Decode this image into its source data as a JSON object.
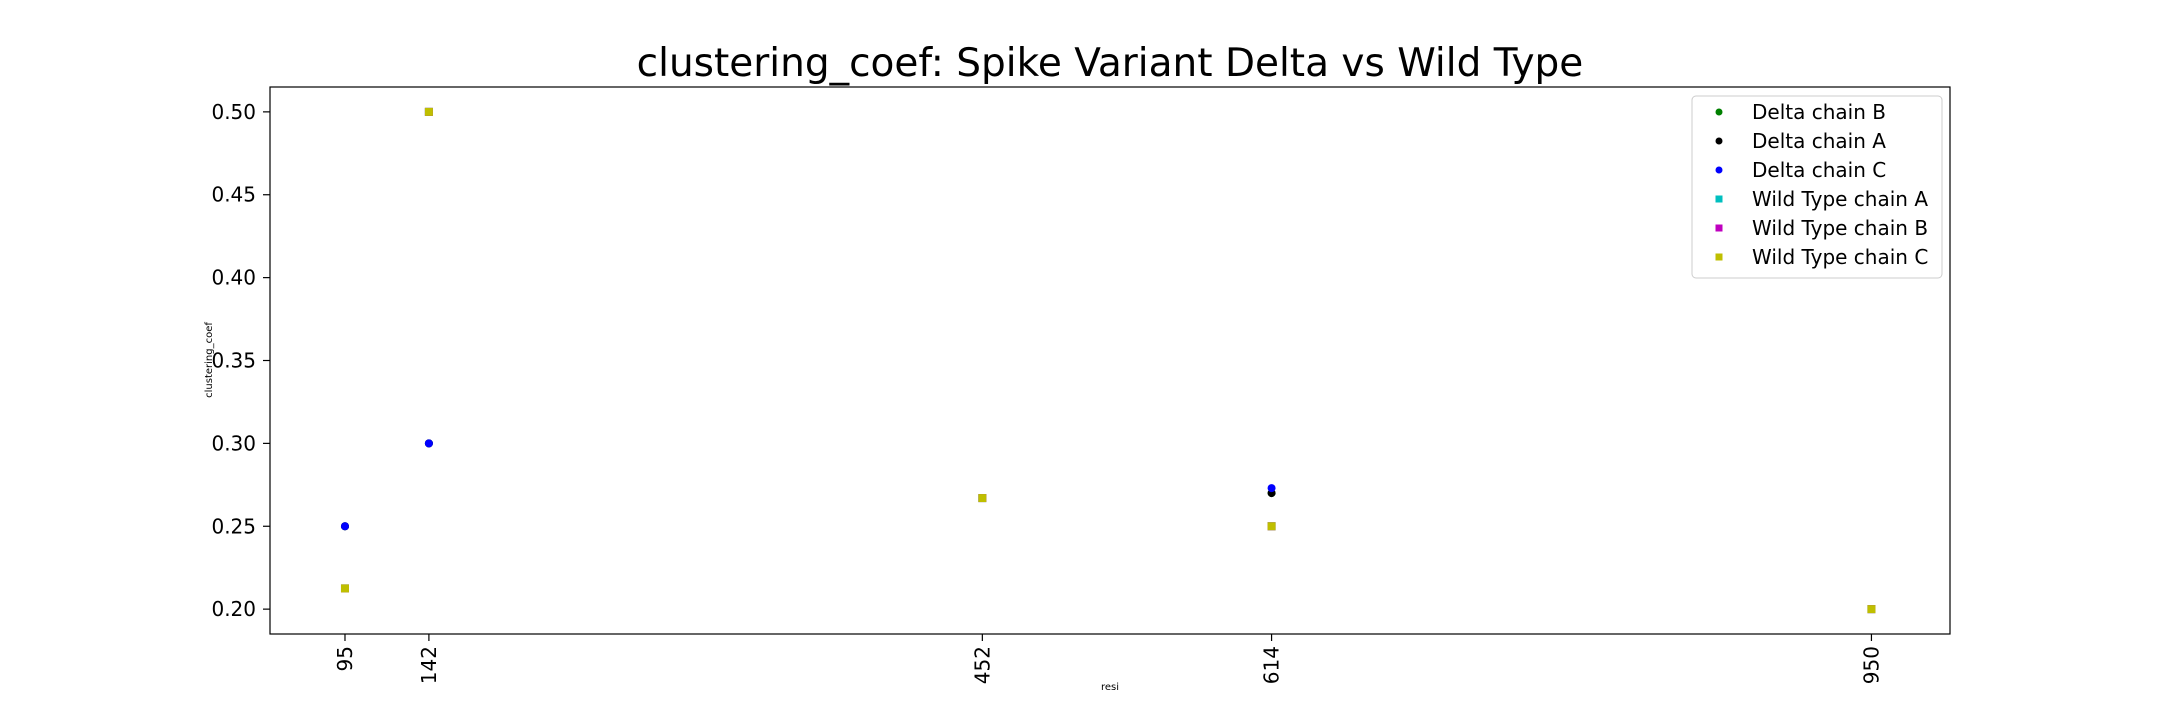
{
  "chart_data": {
    "type": "scatter",
    "title": "clustering_coef: Spike Variant Delta vs Wild Type",
    "xlabel": "resi",
    "ylabel": "clustering_coef",
    "x_ticks": [
      95,
      142,
      452,
      614,
      950
    ],
    "x_tick_labels": [
      "95",
      "142",
      "452",
      "614",
      "950"
    ],
    "xlim": [
      53,
      994
    ],
    "ylim": [
      0.185,
      0.515
    ],
    "y_ticks": [
      0.2,
      0.25,
      0.3,
      0.35,
      0.4,
      0.45,
      0.5
    ],
    "y_tick_labels": [
      "0.20",
      "0.25",
      "0.30",
      "0.35",
      "0.40",
      "0.45",
      "0.50"
    ],
    "grid": false,
    "legend_position": "top-right",
    "series": [
      {
        "name": "Delta chain B",
        "color": "#008000",
        "marker": "circle",
        "points": [
          [
            95,
            0.25
          ],
          [
            142,
            0.3
          ],
          [
            614,
            0.27
          ]
        ]
      },
      {
        "name": "Delta chain A",
        "color": "#000000",
        "marker": "circle",
        "points": [
          [
            95,
            0.25
          ],
          [
            142,
            0.3
          ],
          [
            614,
            0.27
          ]
        ]
      },
      {
        "name": "Delta chain C",
        "color": "#0000ff",
        "marker": "circle",
        "points": [
          [
            95,
            0.25
          ],
          [
            142,
            0.3
          ],
          [
            614,
            0.273
          ]
        ]
      },
      {
        "name": "Wild Type chain A",
        "color": "#00bfbf",
        "marker": "square",
        "points": [
          [
            95,
            0.2125
          ],
          [
            142,
            0.5
          ],
          [
            452,
            0.267
          ],
          [
            614,
            0.25
          ],
          [
            950,
            0.2
          ]
        ]
      },
      {
        "name": "Wild Type chain B",
        "color": "#bf00bf",
        "marker": "square",
        "points": [
          [
            95,
            0.2125
          ],
          [
            142,
            0.5
          ],
          [
            452,
            0.267
          ],
          [
            614,
            0.25
          ],
          [
            950,
            0.2
          ]
        ]
      },
      {
        "name": "Wild Type chain C",
        "color": "#bfbf00",
        "marker": "square",
        "points": [
          [
            95,
            0.2125
          ],
          [
            142,
            0.5
          ],
          [
            452,
            0.267
          ],
          [
            614,
            0.25
          ],
          [
            950,
            0.2
          ]
        ]
      }
    ]
  }
}
